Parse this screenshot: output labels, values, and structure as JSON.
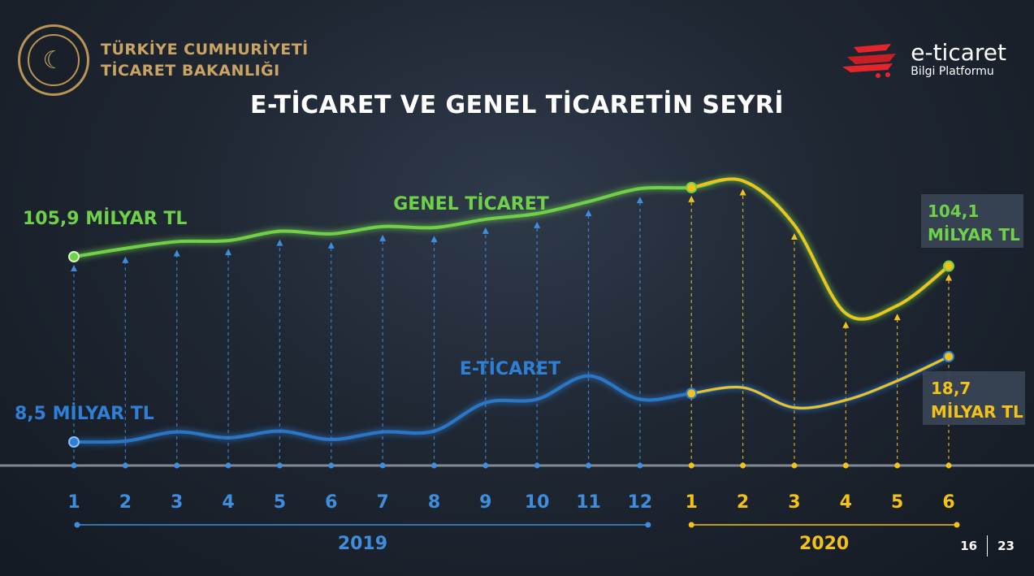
{
  "header": {
    "org_line1": "TÜRKİYE CUMHURİYETİ",
    "org_line2": "TİCARET BAKANLIĞI",
    "brand_name": "e-ticaret",
    "brand_sub": "Bilgi Platformu",
    "title": "E-TİCARET VE GENEL TİCARETİN SEYRİ"
  },
  "colors": {
    "genel": "#6fd14a",
    "eticaret": "#2f7fd6",
    "year2020": "#f2c21b",
    "axis2019": "#3f8ddc",
    "text": "#ffffff"
  },
  "chart_data": {
    "type": "line",
    "title": "E-TİCARET VE GENEL TİCARETİN SEYRİ",
    "categories": [
      "1",
      "2",
      "3",
      "4",
      "5",
      "6",
      "7",
      "8",
      "9",
      "10",
      "11",
      "12",
      "1",
      "2",
      "3",
      "4",
      "5",
      "6"
    ],
    "year_groups": [
      {
        "label": "2019",
        "start": 0,
        "end": 11
      },
      {
        "label": "2020",
        "start": 12,
        "end": 17
      }
    ],
    "series": [
      {
        "name": "GENEL TİCARET",
        "values": [
          105.9,
          107.5,
          108.8,
          109.0,
          110.8,
          110.3,
          111.7,
          111.5,
          113.1,
          114.2,
          116.5,
          119.0,
          119.2,
          120.5,
          112.0,
          95.0,
          96.5,
          104.1
        ]
      },
      {
        "name": "E-TİCARET",
        "values": [
          8.5,
          8.6,
          9.7,
          9.0,
          9.8,
          8.8,
          9.7,
          9.8,
          13.2,
          13.6,
          16.4,
          13.6,
          14.3,
          15.0,
          12.6,
          13.5,
          15.8,
          18.7
        ]
      }
    ],
    "labels": {
      "genel_start": "105,9 MİLYAR TL",
      "genel_end_line1": "104,1",
      "genel_end_line2": "MİLYAR TL",
      "eticaret_start": "8,5 MİLYAR TL",
      "eticaret_end_line1": "18,7",
      "eticaret_end_line2": "MİLYAR TL"
    }
  },
  "footer": {
    "page_current": "16",
    "page_total": "23"
  }
}
